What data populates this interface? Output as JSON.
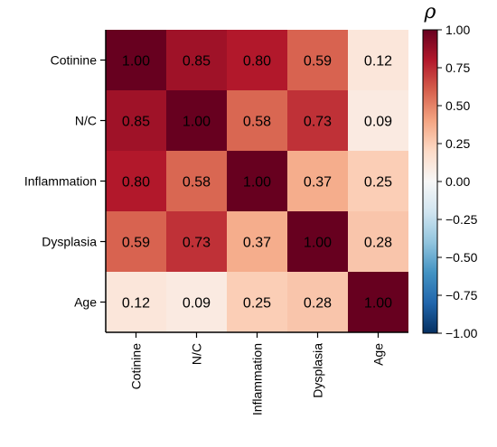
{
  "chart_data": {
    "type": "heatmap",
    "rows": [
      "Cotinine",
      "N/C",
      "Inflammation",
      "Dysplasia",
      "Age"
    ],
    "columns": [
      "Cotinine",
      "N/C",
      "Inflammation",
      "Dysplasia",
      "Age"
    ],
    "values": [
      [
        1.0,
        0.85,
        0.8,
        0.59,
        0.12
      ],
      [
        0.85,
        1.0,
        0.58,
        0.73,
        0.09
      ],
      [
        0.8,
        0.58,
        1.0,
        0.37,
        0.25
      ],
      [
        0.59,
        0.73,
        0.37,
        1.0,
        0.28
      ],
      [
        0.12,
        0.09,
        0.25,
        0.28,
        1.0
      ]
    ],
    "value_labels": [
      [
        "1.00",
        "0.85",
        "0.80",
        "0.59",
        "0.12"
      ],
      [
        "0.85",
        "1.00",
        "0.58",
        "0.73",
        "0.09"
      ],
      [
        "0.80",
        "0.58",
        "1.00",
        "0.37",
        "0.25"
      ],
      [
        "0.59",
        "0.73",
        "0.37",
        "1.00",
        "0.28"
      ],
      [
        "0.12",
        "0.09",
        "0.25",
        "0.28",
        "1.00"
      ]
    ],
    "colorbar": {
      "title": "ρ",
      "colormap": "RdBu_r",
      "range": [
        -1.0,
        1.0
      ],
      "ticks": [
        1.0,
        0.75,
        0.5,
        0.25,
        0.0,
        -0.25,
        -0.5,
        -0.75,
        -1.0
      ],
      "tick_labels": [
        "1.00",
        "0.75",
        "0.50",
        "0.25",
        "0.00",
        "−0.25",
        "−0.50",
        "−0.75",
        "−1.00"
      ]
    },
    "colors": {
      "max": "#67001f",
      "mid": "#f7f7f7",
      "min": "#053061"
    }
  }
}
